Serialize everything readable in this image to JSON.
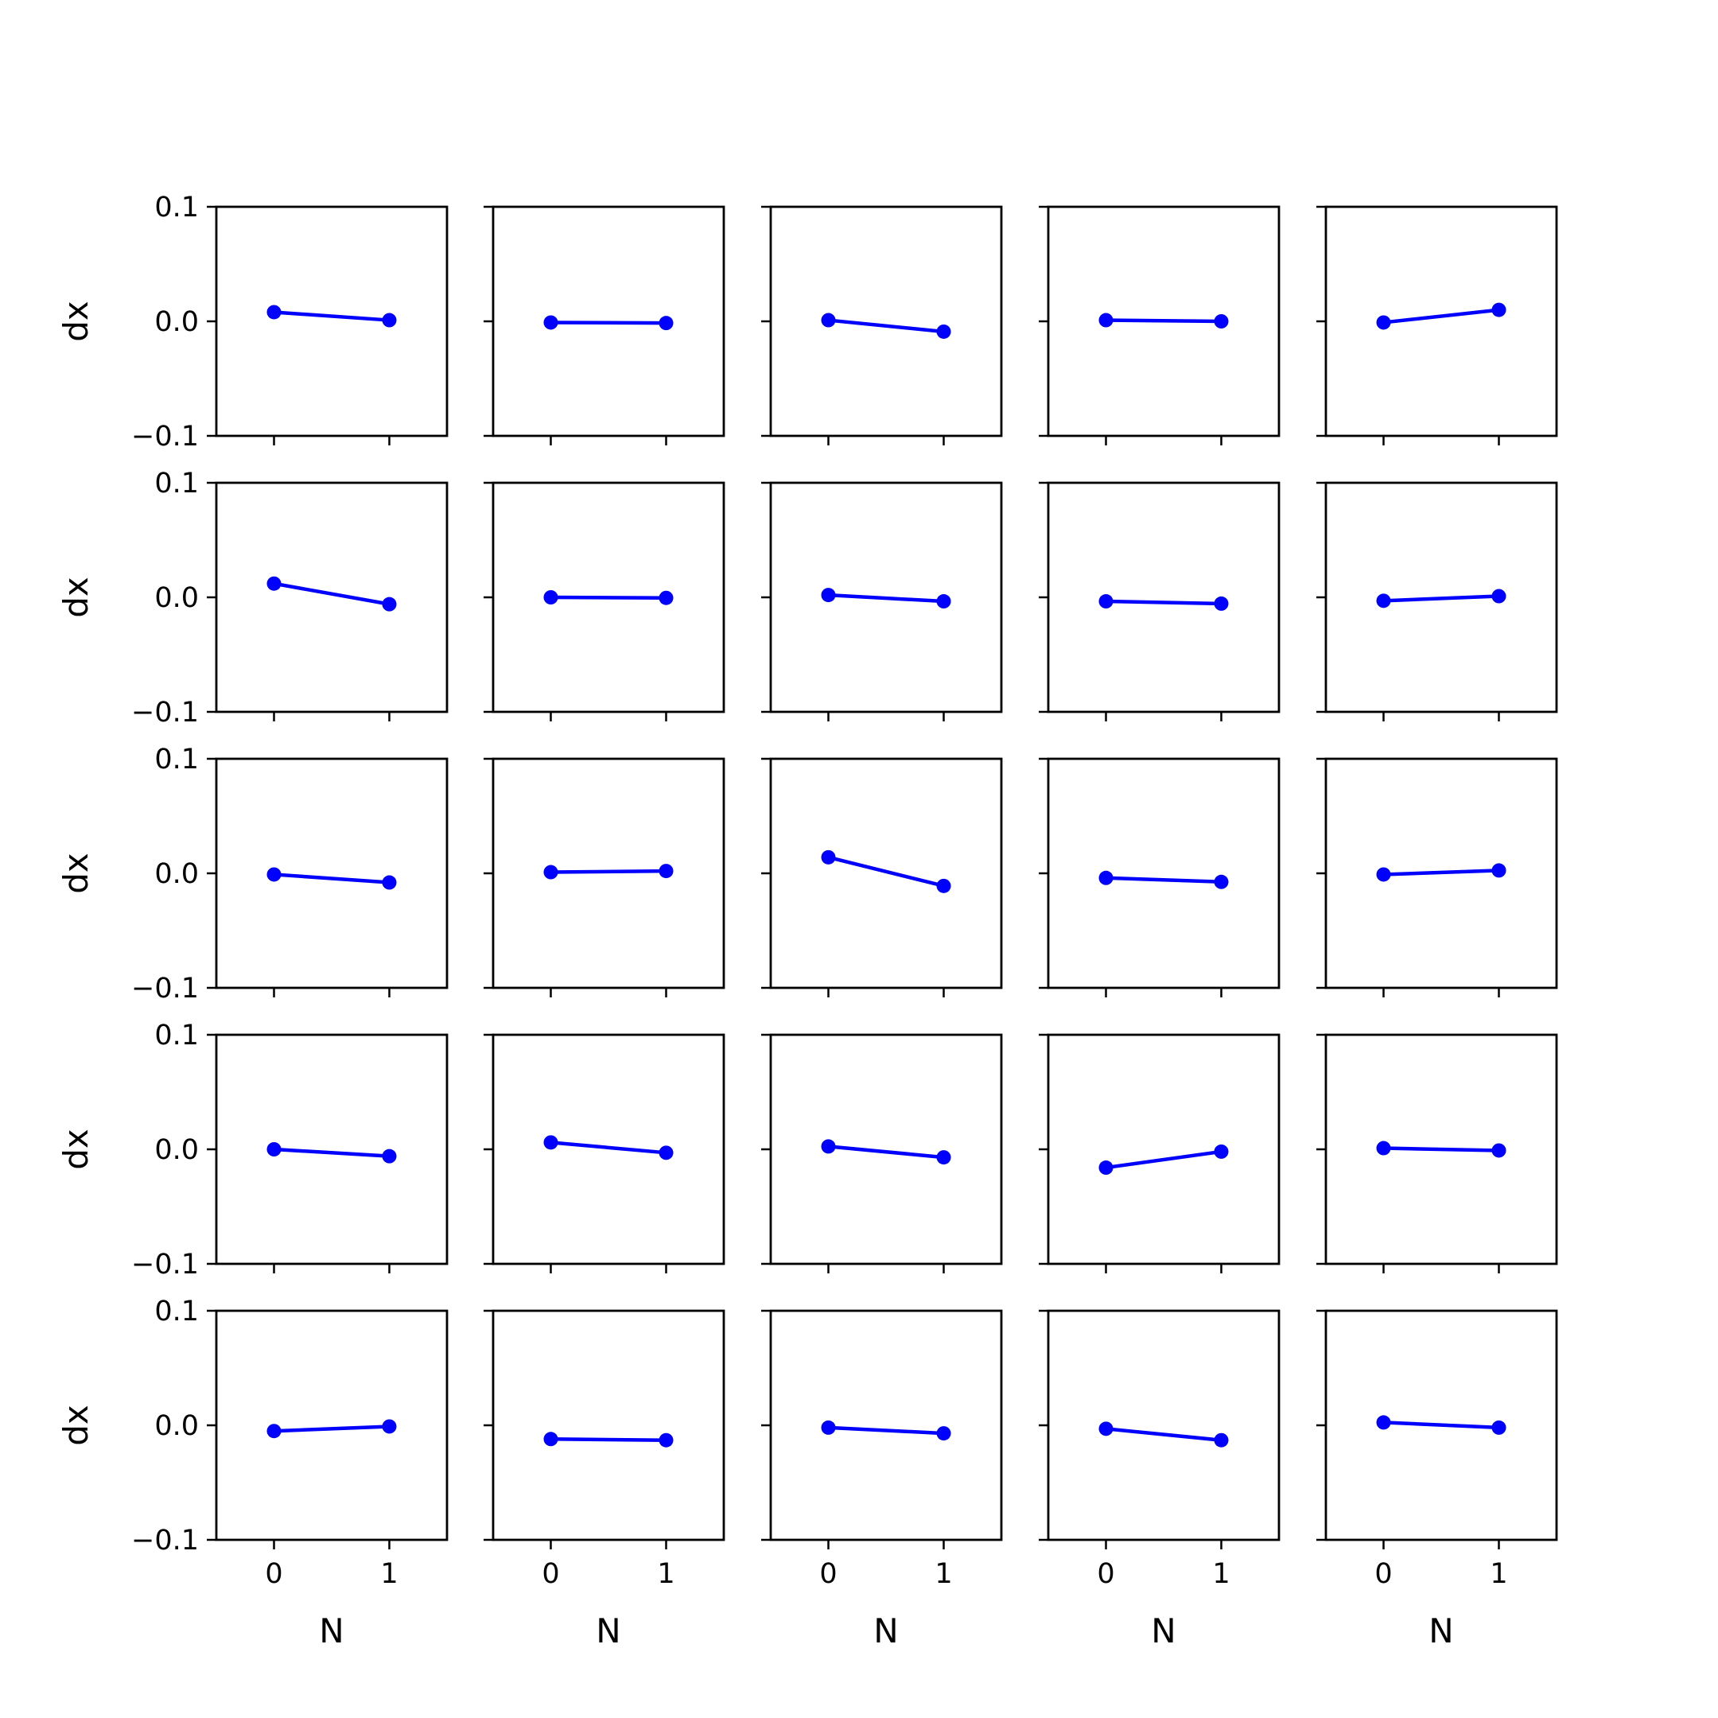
{
  "colors": {
    "line": "#0000ff",
    "axes": "#000000",
    "background": "#ffffff"
  },
  "chart_data": {
    "type": "line",
    "layout": "5x5 grid of small multiples",
    "shared_axes": true,
    "grid": false,
    "legend": "none",
    "marker": "circle",
    "xlabel": "N",
    "ylabel": "dx",
    "xticks": [
      "0",
      "1"
    ],
    "yticks": [
      "−0.1",
      "0.0",
      "0.1"
    ],
    "x": [
      0,
      1
    ],
    "xlim": [
      -0.5,
      1.5
    ],
    "ylim": [
      -0.1,
      0.1
    ],
    "panels": [
      [
        [
          0.008,
          0.001
        ],
        [
          -0.001,
          -0.0015
        ],
        [
          0.001,
          -0.009
        ],
        [
          0.001,
          0.0
        ],
        [
          -0.001,
          0.01
        ]
      ],
      [
        [
          0.012,
          -0.006
        ],
        [
          0.0,
          -0.0005
        ],
        [
          0.002,
          -0.0035
        ],
        [
          -0.0035,
          -0.0055
        ],
        [
          -0.003,
          0.001
        ]
      ],
      [
        [
          -0.001,
          -0.008
        ],
        [
          0.001,
          0.002
        ],
        [
          0.014,
          -0.011
        ],
        [
          -0.004,
          -0.0075
        ],
        [
          -0.001,
          0.0025
        ]
      ],
      [
        [
          0.0,
          -0.006
        ],
        [
          0.006,
          -0.003
        ],
        [
          0.0025,
          -0.007
        ],
        [
          -0.016,
          -0.002
        ],
        [
          0.001,
          -0.001
        ]
      ],
      [
        [
          -0.005,
          -0.001
        ],
        [
          -0.012,
          -0.013
        ],
        [
          -0.002,
          -0.007
        ],
        [
          -0.003,
          -0.013
        ],
        [
          0.0025,
          -0.002
        ]
      ]
    ]
  }
}
